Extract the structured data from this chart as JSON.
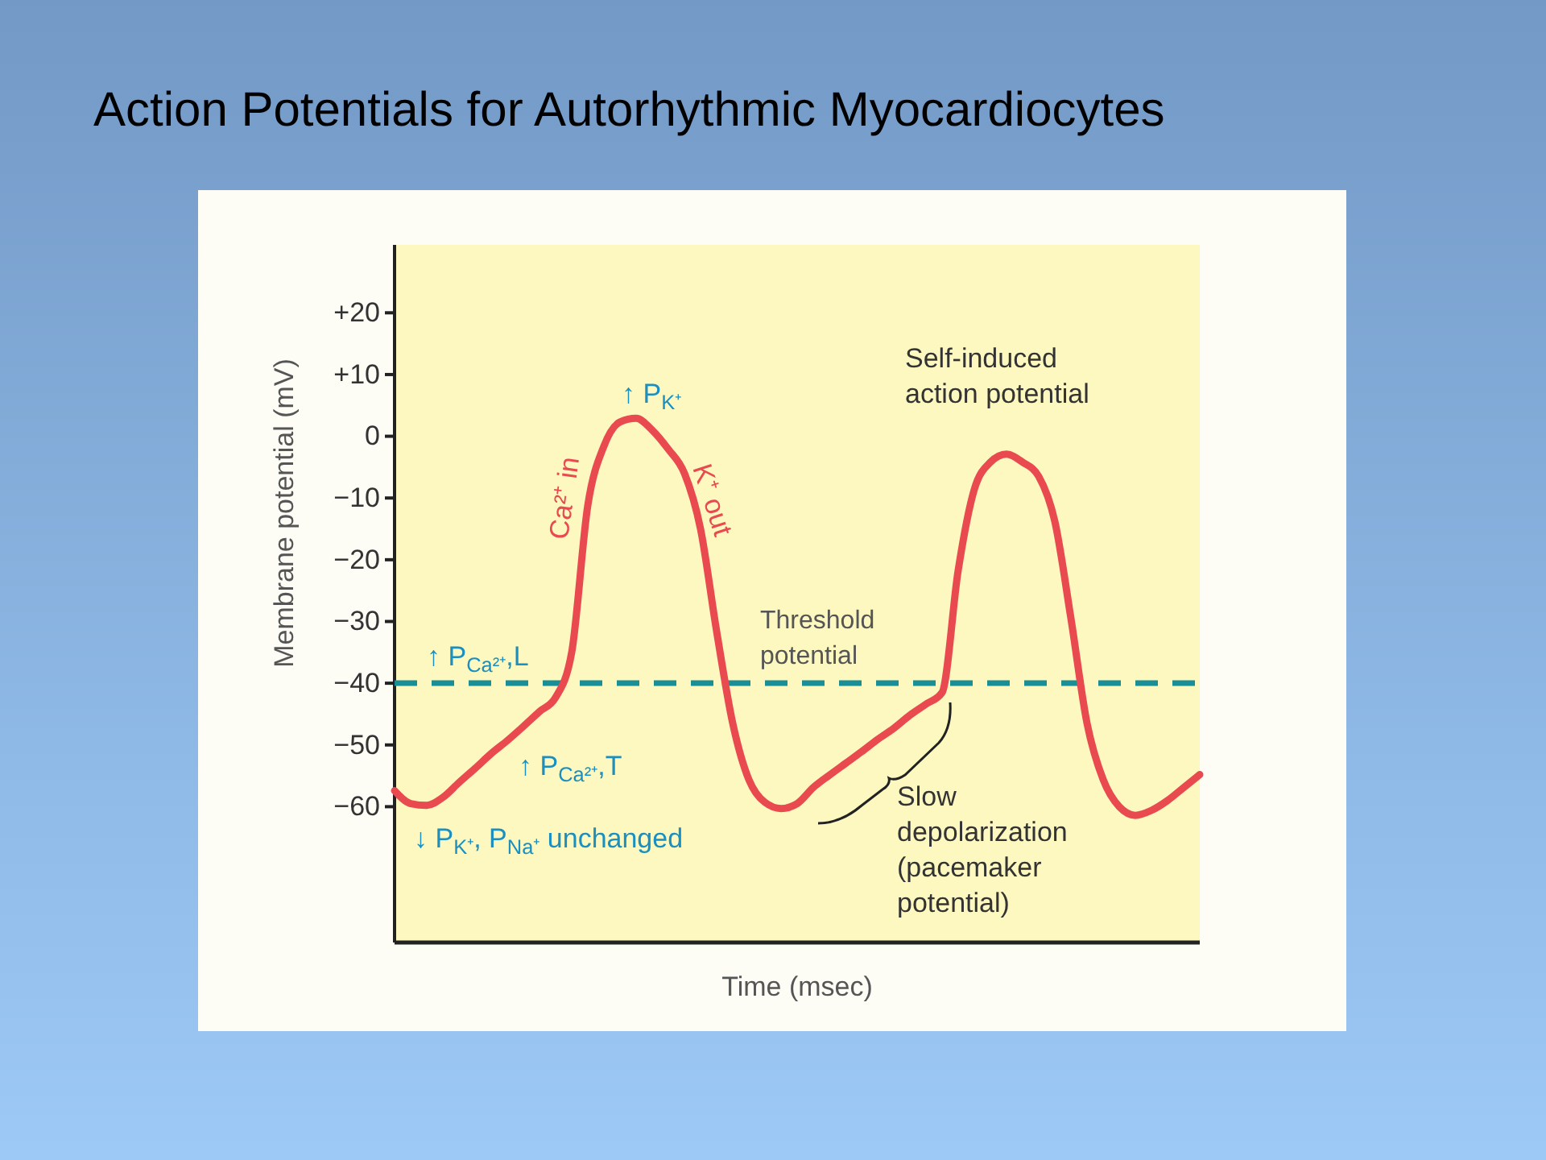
{
  "chart_data": {
    "type": "line",
    "title": "Action Potentials for Autorhythmic Myocardiocytes",
    "xlabel": "Time (msec)",
    "ylabel": "Membrane potential (mV)",
    "categories": [
      null,
      null,
      null,
      null,
      null,
      null,
      null,
      null,
      null,
      null,
      null,
      null,
      null,
      null,
      null,
      null,
      null,
      null,
      null,
      null,
      null,
      null,
      null,
      null,
      null,
      null,
      null,
      null,
      null,
      null,
      null,
      null,
      null,
      null,
      null,
      null,
      null,
      null,
      null,
      null,
      null,
      null,
      null,
      null,
      null,
      null,
      null,
      null,
      null,
      null,
      null
    ],
    "series": [
      {
        "color": "#e84a50",
        "values": [
          -57.4,
          -59.5,
          -59.8,
          -58.5,
          -56.1,
          -53.8,
          -51.4,
          -49.3,
          -47.0,
          -44.6,
          -42.3,
          -35.0,
          -11.2,
          -1.6,
          2.3,
          2.9,
          1.0,
          -2.1,
          -6.0,
          -15.0,
          -31.6,
          -46.5,
          -55.6,
          -59.3,
          -60.3,
          -59.5,
          -56.9,
          -54.9,
          -53.0,
          -51.1,
          -49.1,
          -47.3,
          -45.2,
          -43.4,
          -41.5,
          -21.7,
          -8.6,
          -4.2,
          -2.9,
          -4.2,
          -6.5,
          -13.8,
          -29.5,
          -46.5,
          -55.6,
          -60.0,
          -61.4,
          -60.6,
          -59.0,
          -56.9,
          -54.8
        ]
      }
    ],
    "ylim": [
      -82,
      31
    ],
    "yticks": [
      {
        "value": 20,
        "label": "+20"
      },
      {
        "value": 10,
        "label": "+10"
      },
      0,
      {
        "value": -10,
        "label": "−10"
      },
      {
        "value": -20,
        "label": "−20"
      },
      {
        "value": -30,
        "label": "−30"
      },
      {
        "value": -40,
        "label": "−40"
      },
      {
        "value": -50,
        "label": "−50"
      },
      {
        "value": -60,
        "label": "−60"
      }
    ],
    "tick_labels": "y",
    "grid": false,
    "line_style": "solid",
    "ref_lines": [
      {
        "axis": "y",
        "value": -40,
        "label": "Threshold potential",
        "color": "#1a8e96",
        "line_style": "dashed"
      }
    ],
    "annotations": [
      "↑ P$_{K⁺}$",
      "Ca²⁺ in",
      "K⁺ out",
      "Self-induced action potential",
      "↑ P$_{Ca²⁺}$,L",
      "↑ P$_{Ca²⁺}$,T",
      "↓ P$_{K⁺}$, P$_{Na⁺}$ unchanged",
      "Slow depolarization (pacemaker potential)"
    ]
  }
}
